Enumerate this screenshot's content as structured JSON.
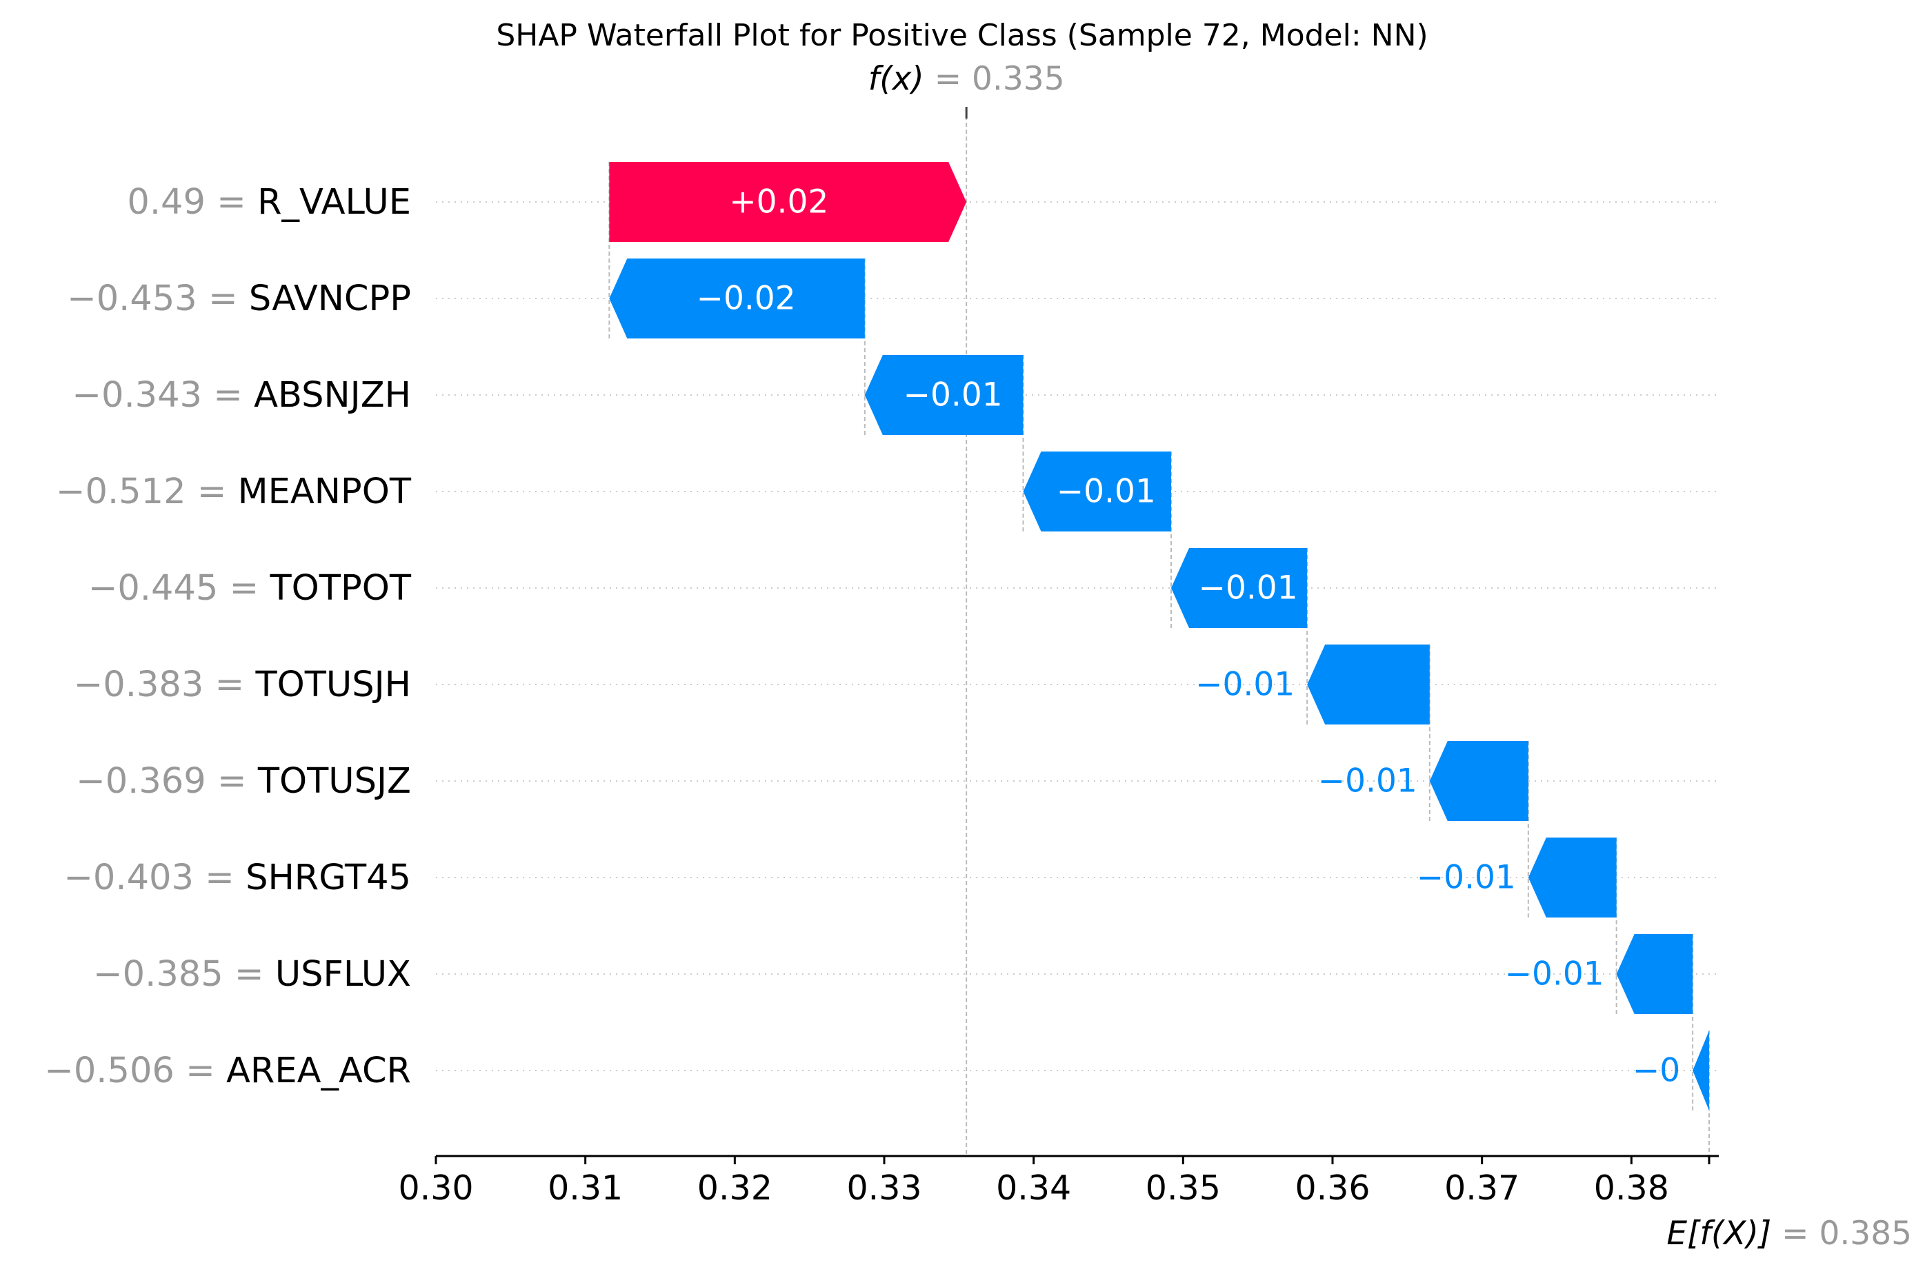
{
  "chart_data": {
    "type": "waterfall",
    "title": "SHAP Waterfall Plot for Positive Class (Sample 72, Model: NN)",
    "fx": {
      "label": "f(x)",
      "value_text": "= 0.335",
      "value": 0.3355
    },
    "base": {
      "label": "E[f(X)]",
      "value_text": "= 0.385",
      "value": 0.3852
    },
    "xlim": [
      0.3,
      0.3852
    ],
    "xticks": [
      0.3,
      0.31,
      0.32,
      0.33,
      0.34,
      0.35,
      0.36,
      0.37,
      0.38
    ],
    "xtick_labels": [
      "0.30",
      "0.31",
      "0.32",
      "0.33",
      "0.34",
      "0.35",
      "0.36",
      "0.37",
      "0.38"
    ],
    "grid": "horizontal dotted",
    "colors": {
      "positive": "#ff0051",
      "negative": "#008bfb",
      "value_text": "#999999",
      "axis": "#000000",
      "guide": "#bbbbbb"
    },
    "features": [
      {
        "name": "R_VALUE",
        "value_text": "0.49 =",
        "shap": 0.0239,
        "shap_label": "+0.02",
        "start": 0.3116,
        "end": 0.3355
      },
      {
        "name": "SAVNCPP",
        "value_text": "−0.453 =",
        "shap": -0.0171,
        "shap_label": "−0.02",
        "start": 0.3287,
        "end": 0.3116
      },
      {
        "name": "ABSNJZH",
        "value_text": "−0.343 =",
        "shap": -0.0106,
        "shap_label": "−0.01",
        "start": 0.3393,
        "end": 0.3287
      },
      {
        "name": "MEANPOT",
        "value_text": "−0.512 =",
        "shap": -0.0099,
        "shap_label": "−0.01",
        "start": 0.3492,
        "end": 0.3393
      },
      {
        "name": "TOTPOT",
        "value_text": "−0.445 =",
        "shap": -0.0091,
        "shap_label": "−0.01",
        "start": 0.3583,
        "end": 0.3492
      },
      {
        "name": "TOTUSJH",
        "value_text": "−0.383 =",
        "shap": -0.0082,
        "shap_label": "−0.01",
        "start": 0.3665,
        "end": 0.3583
      },
      {
        "name": "TOTUSJZ",
        "value_text": "−0.369 =",
        "shap": -0.0066,
        "shap_label": "−0.01",
        "start": 0.3731,
        "end": 0.3665
      },
      {
        "name": "SHRGT45",
        "value_text": "−0.403 =",
        "shap": -0.0059,
        "shap_label": "−0.01",
        "start": 0.379,
        "end": 0.3731
      },
      {
        "name": "USFLUX",
        "value_text": "−0.385 =",
        "shap": -0.0051,
        "shap_label": "−0.01",
        "start": 0.3841,
        "end": 0.379
      },
      {
        "name": "AREA_ACR",
        "value_text": "−0.506 =",
        "shap": -0.0011,
        "shap_label": "−0",
        "start": 0.3852,
        "end": 0.3841
      }
    ]
  }
}
